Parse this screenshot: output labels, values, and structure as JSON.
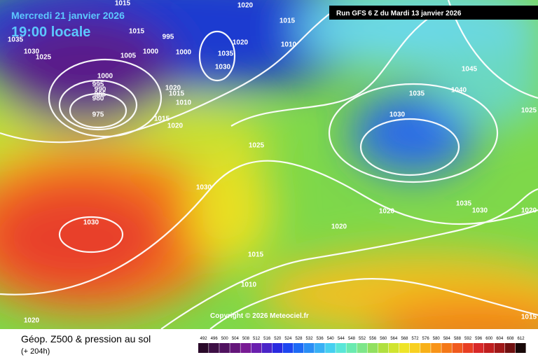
{
  "header": {
    "date": "Mercredi 21 janvier 2026",
    "time": "19:00 locale",
    "run": "Run GFS 6 Z du Mardi 13 janvier 2026"
  },
  "copyright": "Copyright © 2026 Meteociel.fr",
  "legend": {
    "title": "Géop. Z500 & pression au sol",
    "lead": "(+ 204h)",
    "scale": [
      492,
      496,
      500,
      504,
      508,
      512,
      516,
      520,
      524,
      528,
      532,
      536,
      540,
      544,
      548,
      552,
      556,
      560,
      564,
      568,
      572,
      576,
      580,
      584,
      588,
      592,
      596,
      600,
      604,
      608,
      612
    ]
  },
  "isobar_labels": [
    "1015",
    "1020",
    "1015",
    "1035",
    "1015",
    "995",
    "1030",
    "1025",
    "1005",
    "1000",
    "1000",
    "1035",
    "1020",
    "1010",
    "1030",
    "1000",
    "995",
    "990",
    "985",
    "980",
    "1020",
    "1015",
    "1010",
    "975",
    "1015",
    "1020",
    "1025",
    "1030",
    "1030",
    "1020",
    "1035",
    "1030",
    "1045",
    "1040",
    "1025",
    "1020",
    "1035",
    "1030",
    "1020",
    "1020",
    "1015",
    "1010",
    "1015"
  ]
}
